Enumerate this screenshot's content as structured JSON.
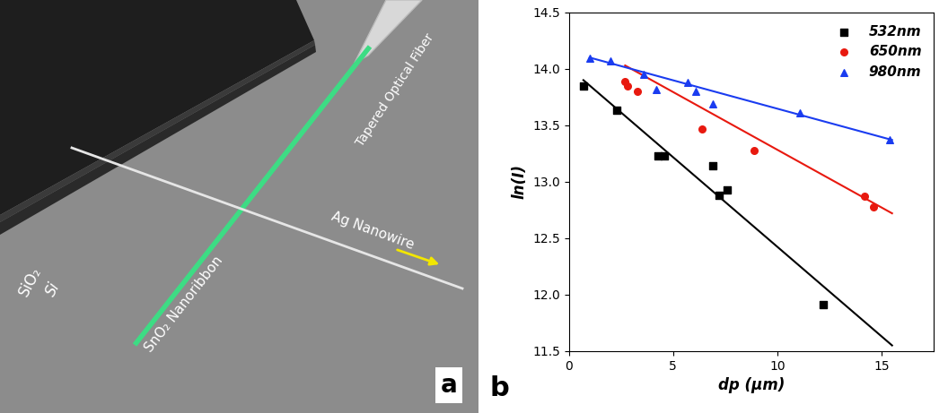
{
  "panel_a": {
    "label": "a",
    "texts": {
      "sio2": "SiO₂",
      "si": "Si",
      "nanoribbon": "SnO₂ Nanoribbon",
      "nanowire": "Ag Nanowire",
      "fiber": "Tapered Optical Fiber"
    }
  },
  "chart_data": {
    "type": "scatter",
    "label": "b",
    "x_label": "dp (μm)",
    "y_label": "ln(I)",
    "xlim": [
      0,
      17.5
    ],
    "xticks": [
      0,
      5,
      10,
      15
    ],
    "ylim": [
      11.5,
      14.5
    ],
    "yticks": [
      11.5,
      12.0,
      12.5,
      13.0,
      13.5,
      14.0,
      14.5
    ],
    "legend": "upper right",
    "series": [
      {
        "name": "532nm",
        "type": "scatter",
        "color": "#000000",
        "marker": "square",
        "x": [
          0.7,
          2.3,
          4.3,
          4.6,
          6.9,
          7.2,
          7.6,
          12.2
        ],
        "values": [
          13.85,
          13.63,
          13.23,
          13.23,
          13.14,
          12.88,
          12.93,
          11.91
        ]
      },
      {
        "name": "650nm",
        "type": "scatter",
        "color": "#e8190f",
        "marker": "circle",
        "x": [
          2.7,
          2.8,
          3.3,
          6.4,
          8.9,
          14.2,
          14.6
        ],
        "values": [
          13.89,
          13.85,
          13.8,
          13.47,
          13.28,
          12.87,
          12.78
        ]
      },
      {
        "name": "980nm",
        "type": "scatter",
        "color": "#1a3cf0",
        "marker": "triangle",
        "x": [
          1.0,
          2.0,
          3.6,
          4.2,
          5.7,
          6.1,
          6.9,
          11.1,
          15.4
        ],
        "values": [
          14.09,
          14.07,
          13.95,
          13.82,
          13.88,
          13.8,
          13.69,
          13.61,
          13.37
        ]
      },
      {
        "type": "line",
        "color": "#000000",
        "line_style": "solid",
        "x": [
          0.7,
          15.5
        ],
        "values": [
          13.9,
          11.55
        ]
      },
      {
        "type": "line",
        "color": "#e8190f",
        "line_style": "solid",
        "x": [
          2.7,
          15.5
        ],
        "values": [
          14.03,
          12.72
        ]
      },
      {
        "type": "line",
        "color": "#1a3cf0",
        "line_style": "solid",
        "x": [
          1.0,
          15.5
        ],
        "values": [
          14.1,
          13.37
        ]
      }
    ]
  }
}
